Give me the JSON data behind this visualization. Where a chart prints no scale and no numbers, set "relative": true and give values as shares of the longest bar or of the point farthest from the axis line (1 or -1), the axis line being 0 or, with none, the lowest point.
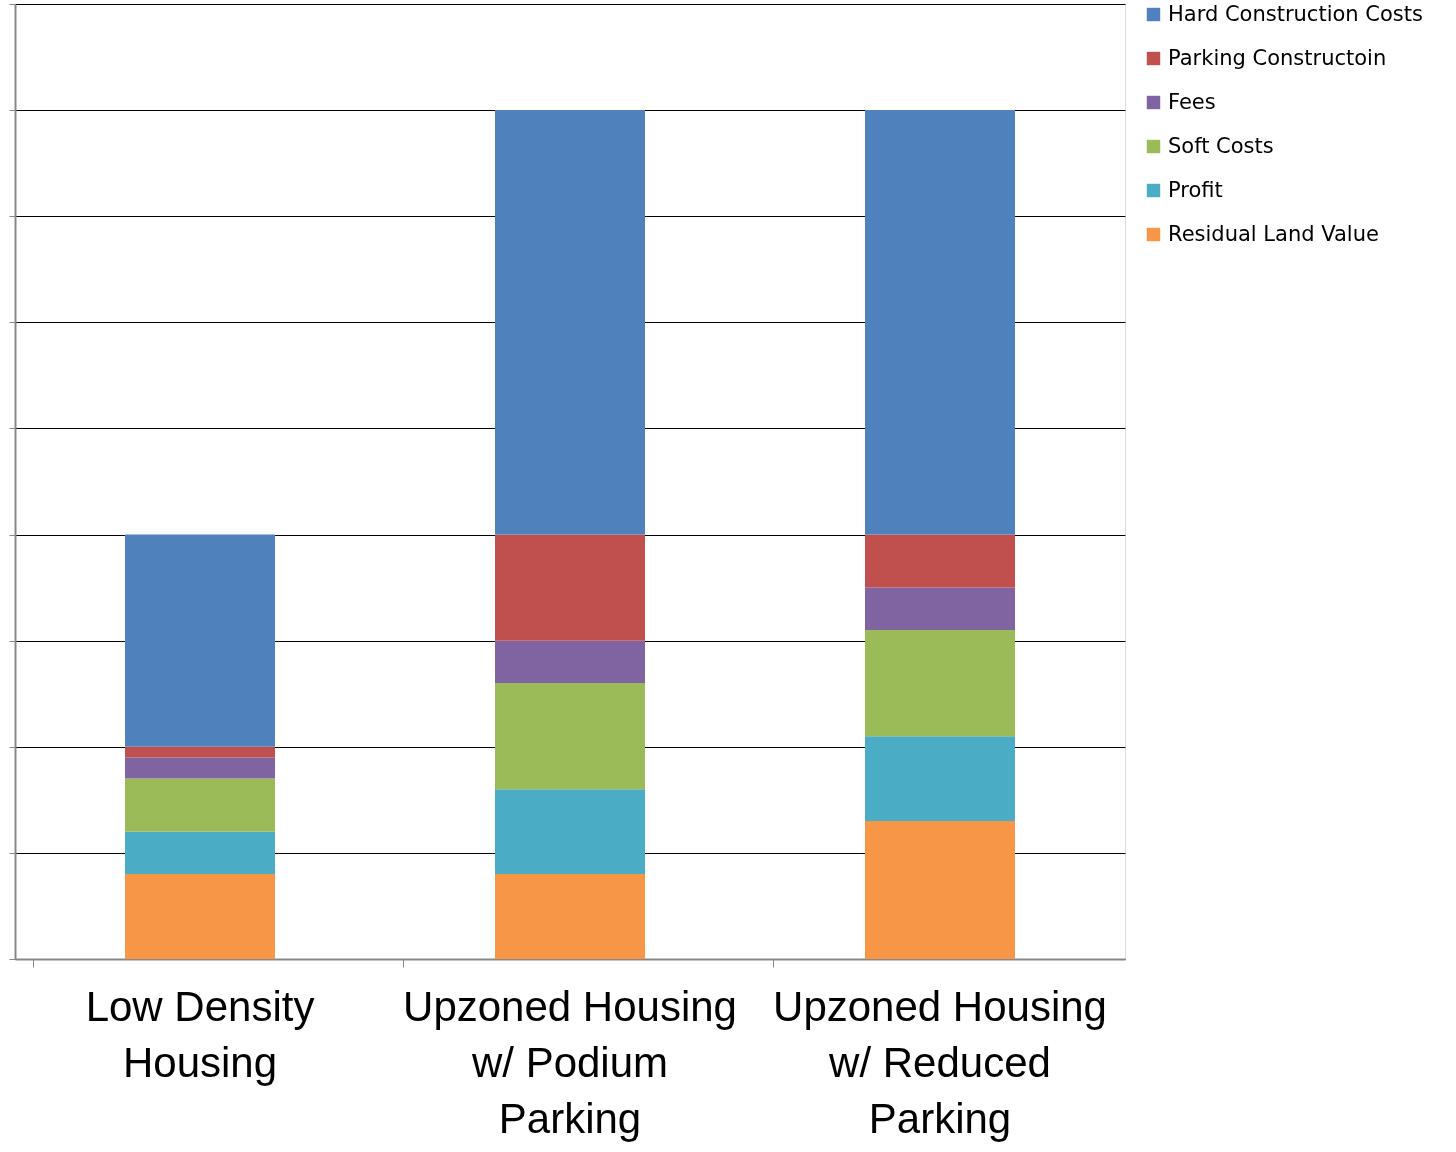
{
  "chart_data": {
    "type": "bar",
    "stacked": true,
    "relative": true,
    "grid": "y",
    "legend": "right",
    "categories": [
      "Low Density Housing",
      "Upzoned Housing w/ Podium Parking",
      "Upzoned Housing w/ Reduced Parking"
    ],
    "series": [
      {
        "name": "Residual Land Value",
        "color": "#f79646",
        "values": [
          0.1,
          0.1,
          0.1625
        ]
      },
      {
        "name": "Profit",
        "color": "#4bacc6",
        "values": [
          0.05,
          0.1,
          0.1
        ]
      },
      {
        "name": "Soft Costs",
        "color": "#9bbb59",
        "values": [
          0.0625,
          0.125,
          0.125
        ]
      },
      {
        "name": "Fees",
        "color": "#8064a2",
        "values": [
          0.025,
          0.05,
          0.05
        ]
      },
      {
        "name": "Parking Constructoin",
        "color": "#c0504d",
        "values": [
          0.0125,
          0.125,
          0.0625
        ]
      },
      {
        "name": "Hard Construction Costs",
        "color": "#4f81bd",
        "values": [
          0.25,
          0.5,
          0.5
        ]
      }
    ]
  }
}
